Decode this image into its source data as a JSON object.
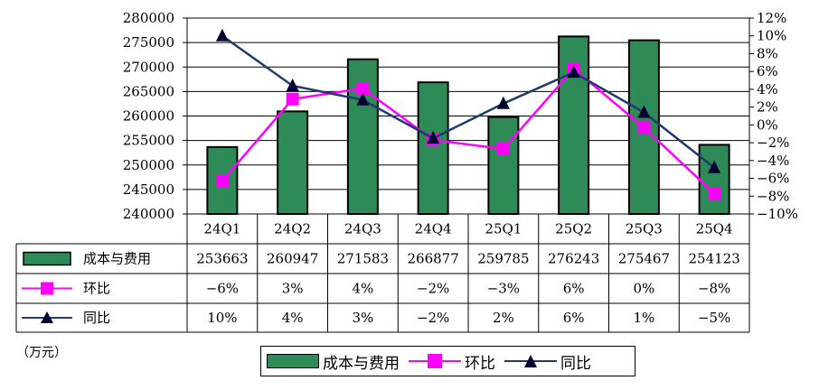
{
  "chart_data": {
    "type": "bar",
    "categories": [
      "24Q1",
      "24Q2",
      "24Q3",
      "24Q4",
      "25Q1",
      "25Q2",
      "25Q3",
      "25Q4"
    ],
    "y_left": {
      "min": 240000,
      "max": 280000,
      "step": 5000,
      "ticks": [
        "280000",
        "275000",
        "270000",
        "265000",
        "260000",
        "255000",
        "250000",
        "245000",
        "240000"
      ]
    },
    "y_right": {
      "min": -10,
      "max": 12,
      "step": 2,
      "ticks": [
        "12%",
        "10%",
        "8%",
        "6%",
        "4%",
        "2%",
        "0%",
        "−2%",
        "−4%",
        "−6%",
        "−8%",
        "−10%"
      ]
    },
    "series": [
      {
        "name": "成本与费用",
        "type": "bar",
        "axis": "left",
        "color": "#2e8b57",
        "values": [
          253663,
          260947,
          271583,
          266877,
          259785,
          276243,
          275467,
          254123
        ],
        "labels": [
          "253663",
          "260947",
          "271583",
          "266877",
          "259785",
          "276243",
          "275467",
          "254123"
        ]
      },
      {
        "name": "环比",
        "type": "line",
        "axis": "right",
        "color": "#ff00ff",
        "marker": "square",
        "values": [
          -6.3,
          2.9,
          4.1,
          -1.7,
          -2.7,
          6.3,
          -0.3,
          -7.7
        ],
        "labels": [
          "−6%",
          "3%",
          "4%",
          "−2%",
          "−3%",
          "6%",
          "0%",
          "−8%"
        ]
      },
      {
        "name": "同比",
        "type": "line",
        "axis": "right",
        "color": "#1f3a6b",
        "marker": "triangle",
        "values": [
          10,
          4.4,
          2.8,
          -1.5,
          2.4,
          5.9,
          1.4,
          -4.8
        ],
        "labels": [
          "10%",
          "4%",
          "3%",
          "−2%",
          "2%",
          "6%",
          "1%",
          "−5%"
        ]
      }
    ],
    "unit_note": "（万元）",
    "grid": "horizontal"
  }
}
